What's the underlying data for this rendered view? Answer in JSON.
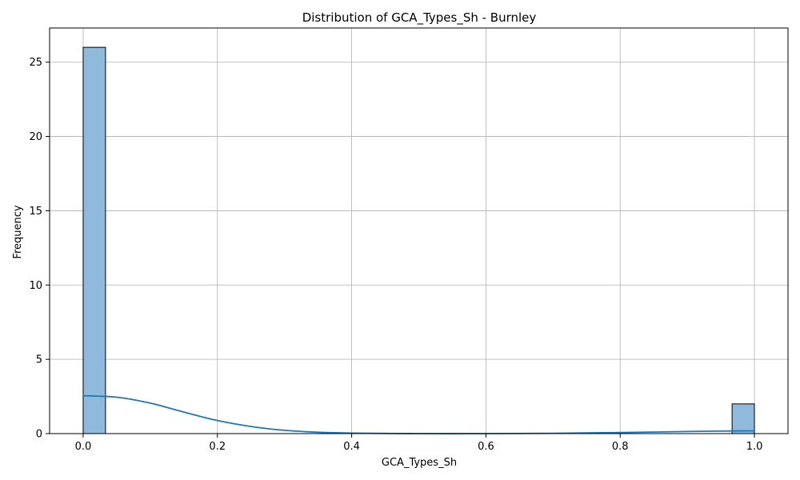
{
  "chart_data": {
    "type": "bar",
    "title": "Distribution of GCA_Types_Sh - Burnley",
    "xlabel": "GCA_Types_Sh",
    "ylabel": "Frequency",
    "xlim": [
      -0.05,
      1.05
    ],
    "ylim": [
      0,
      27.3
    ],
    "grid": true,
    "xticks": [
      {
        "value": 0.0,
        "label": "0.0"
      },
      {
        "value": 0.2,
        "label": "0.2"
      },
      {
        "value": 0.4,
        "label": "0.4"
      },
      {
        "value": 0.6,
        "label": "0.6"
      },
      {
        "value": 0.8,
        "label": "0.8"
      },
      {
        "value": 1.0,
        "label": "1.0"
      }
    ],
    "yticks": [
      {
        "value": 0,
        "label": "0"
      },
      {
        "value": 5,
        "label": "5"
      },
      {
        "value": 10,
        "label": "10"
      },
      {
        "value": 15,
        "label": "15"
      },
      {
        "value": 20,
        "label": "20"
      },
      {
        "value": 25,
        "label": "25"
      }
    ],
    "bins": [
      {
        "x0": 0.0,
        "x1": 0.0333,
        "count": 26
      },
      {
        "x0": 0.9667,
        "x1": 1.0,
        "count": 2
      }
    ],
    "kde": {
      "x": [
        0.0,
        0.05,
        0.1,
        0.15,
        0.2,
        0.25,
        0.3,
        0.35,
        0.4,
        0.5,
        0.6,
        0.7,
        0.8,
        0.9,
        0.95,
        1.0
      ],
      "y": [
        2.55,
        2.45,
        2.05,
        1.45,
        0.88,
        0.48,
        0.22,
        0.09,
        0.03,
        0.0,
        0.0,
        0.02,
        0.07,
        0.14,
        0.17,
        0.19
      ]
    },
    "colors": {
      "bar_fill": "#8fbadc",
      "bar_edge": "#000000",
      "kde_line": "#1f77b4",
      "grid": "#b0b0b0",
      "axes": "#000000"
    }
  }
}
